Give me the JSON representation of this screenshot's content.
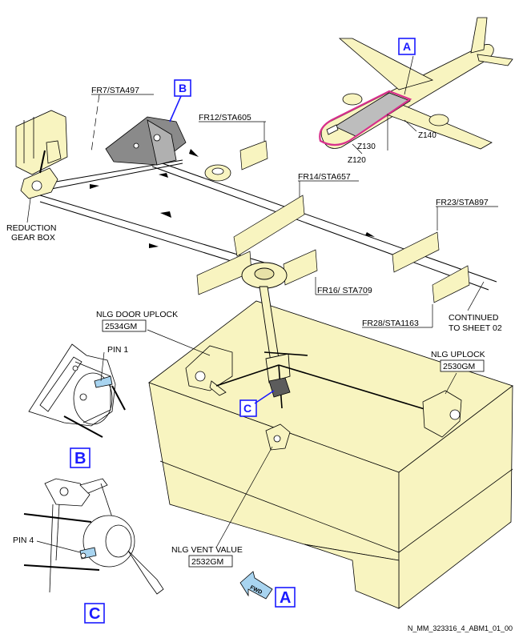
{
  "colors": {
    "structure_fill": "#f8f4c0",
    "outline": "#000000",
    "callout_blue": "#1a1aff",
    "zone_highlight": "#d8308c",
    "panel_grey": "#bdbdbd",
    "light_blue": "#a8d4f0"
  },
  "labels": {
    "fr7": "FR7/STA497",
    "fr12": "FR12/STA605",
    "fr14": "FR14/STA657",
    "fr16": "FR16/ STA709",
    "fr23": "FR23/STA897",
    "fr28": "FR28/STA1163",
    "continued_line1": "CONTINUED",
    "continued_line2": "TO SHEET 02",
    "reduction_line1": "REDUCTION",
    "reduction_line2": "GEAR BOX",
    "door_uplock": "NLG DOOR UPLOCK",
    "door_uplock_code": "2534GM",
    "uplock": "NLG UPLOCK",
    "uplock_code": "2530GM",
    "vent": "NLG VENT VALUE",
    "vent_code": "2532GM",
    "pin1": "PIN 1",
    "pin4": "PIN 4",
    "z120": "Z120",
    "z130": "Z130",
    "z140": "Z140",
    "fwd": "FWD",
    "ref": "N_MM_323316_4_ABM1_01_00"
  },
  "callouts": {
    "a": "A",
    "b": "B",
    "c": "C"
  },
  "icons": [
    "aircraft-icon",
    "fwd-arrow-icon"
  ]
}
